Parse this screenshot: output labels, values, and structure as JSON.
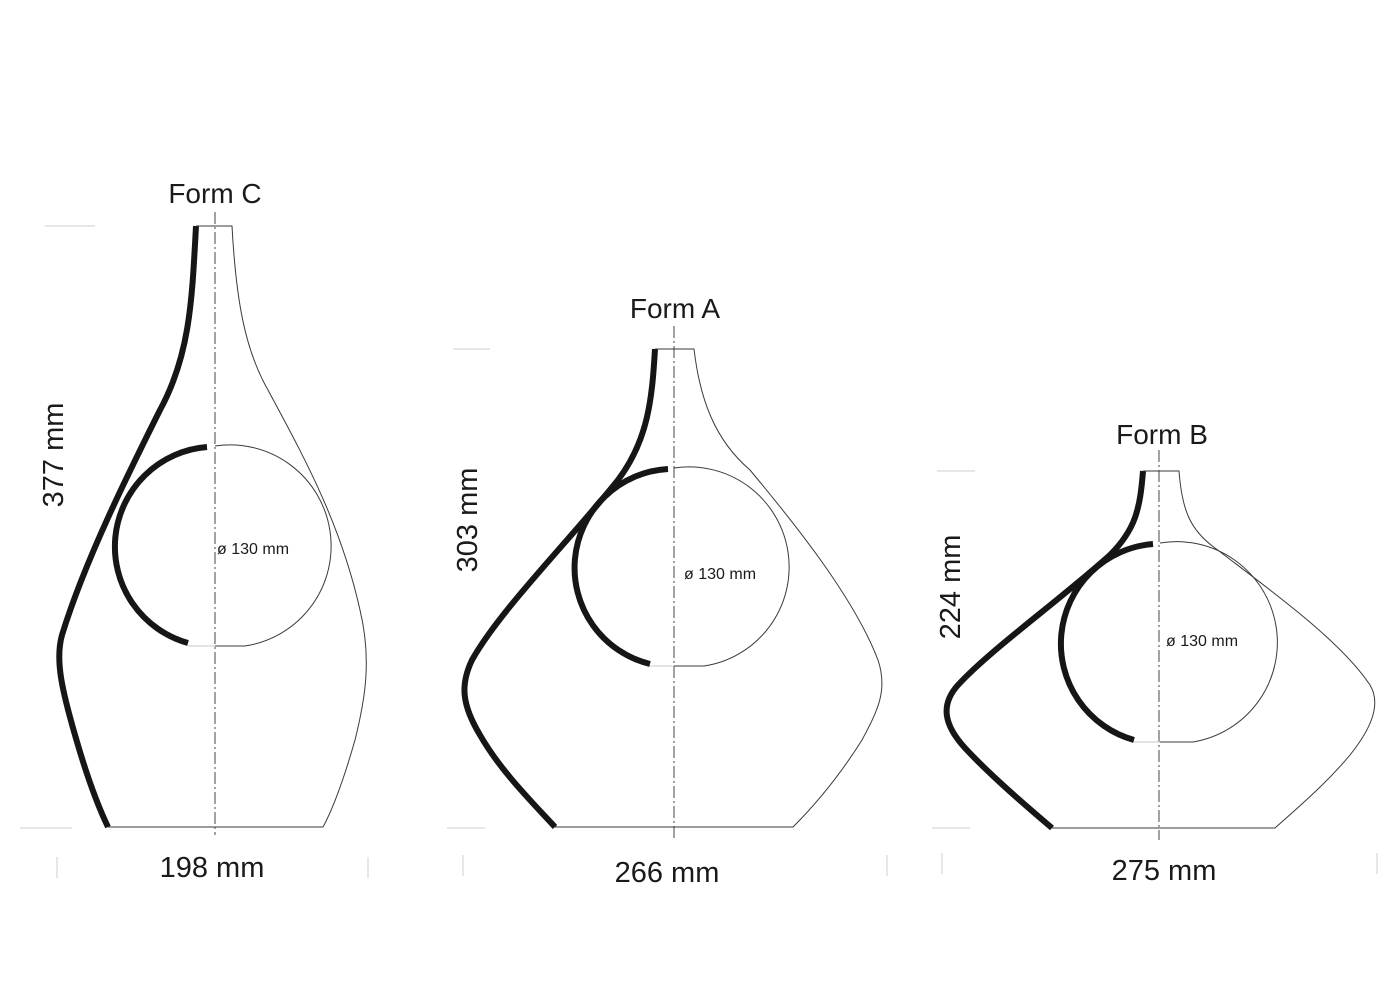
{
  "forms": [
    {
      "name": "Form C",
      "height": "377 mm",
      "width": "198 mm",
      "diameter": "ø 130 mm"
    },
    {
      "name": "Form A",
      "height": "303 mm",
      "width": "266 mm",
      "diameter": "ø 130 mm"
    },
    {
      "name": "Form B",
      "height": "224 mm",
      "width": "275 mm",
      "diameter": "ø 130 mm"
    }
  ],
  "colors": {
    "outline": "#161616",
    "guide": "#cfcfcf"
  }
}
